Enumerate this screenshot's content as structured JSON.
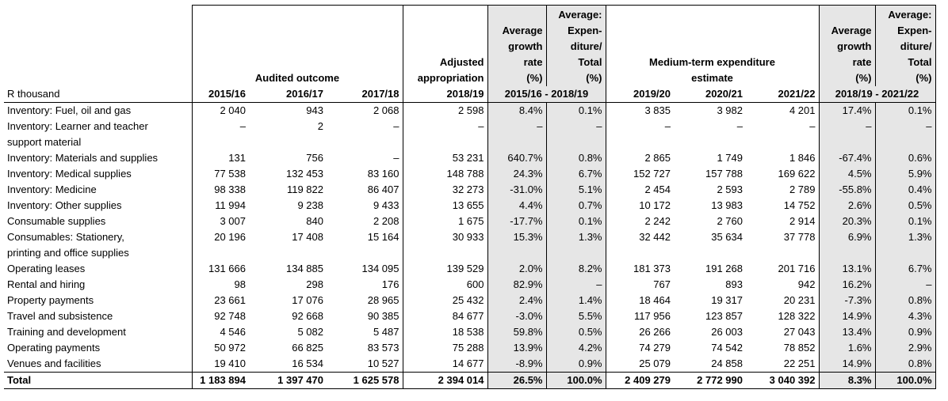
{
  "table": {
    "header": {
      "audited": "Audited outcome",
      "adjusted": [
        "Adjusted",
        "appropriation"
      ],
      "growth": [
        "Average",
        "growth",
        "rate",
        "(%)"
      ],
      "share": [
        "Average:",
        "Expen-",
        "diture/",
        "Total",
        "(%)"
      ],
      "mtef": [
        "Medium-term expenditure",
        "estimate"
      ],
      "unit": "R thousand",
      "years1": [
        "2015/16",
        "2016/17",
        "2017/18",
        "2018/19"
      ],
      "range1": "2015/16 - 2018/19",
      "years2": [
        "2019/20",
        "2020/21",
        "2021/22"
      ],
      "range2": "2018/19 - 2021/22"
    },
    "rows": [
      {
        "label": "Inventory: Fuel, oil and gas",
        "cells": [
          "2 040",
          "943",
          "2 068",
          "2 598",
          "8.4%",
          "0.1%",
          "3 835",
          "3 982",
          "4 201",
          "17.4%",
          "0.1%"
        ]
      },
      {
        "label": [
          "Inventory: Learner and teacher",
          "support material"
        ],
        "cells": [
          "–",
          "2",
          "–",
          "–",
          "–",
          "–",
          "–",
          "–",
          "–",
          "–",
          "–"
        ]
      },
      {
        "label": "Inventory: Materials and supplies",
        "cells": [
          "131",
          "756",
          "–",
          "53 231",
          "640.7%",
          "0.8%",
          "2 865",
          "1 749",
          "1 846",
          "-67.4%",
          "0.6%"
        ]
      },
      {
        "label": "Inventory: Medical supplies",
        "cells": [
          "77 538",
          "132 453",
          "83 160",
          "148 788",
          "24.3%",
          "6.7%",
          "152 727",
          "157 788",
          "169 622",
          "4.5%",
          "5.9%"
        ]
      },
      {
        "label": "Inventory: Medicine",
        "cells": [
          "98 338",
          "119 822",
          "86 407",
          "32 273",
          "-31.0%",
          "5.1%",
          "2 454",
          "2 593",
          "2 789",
          "-55.8%",
          "0.4%"
        ]
      },
      {
        "label": "Inventory: Other supplies",
        "cells": [
          "11 994",
          "9 238",
          "9 433",
          "13 655",
          "4.4%",
          "0.7%",
          "10 172",
          "13 983",
          "14 752",
          "2.6%",
          "0.5%"
        ]
      },
      {
        "label": "Consumable supplies",
        "cells": [
          "3 007",
          "840",
          "2 208",
          "1 675",
          "-17.7%",
          "0.1%",
          "2 242",
          "2 760",
          "2 914",
          "20.3%",
          "0.1%"
        ]
      },
      {
        "label": [
          "Consumables: Stationery,",
          "printing and office supplies"
        ],
        "cells": [
          "20 196",
          "17 408",
          "15 164",
          "30 933",
          "15.3%",
          "1.3%",
          "32 442",
          "35 634",
          "37 778",
          "6.9%",
          "1.3%"
        ]
      },
      {
        "label": "Operating leases",
        "cells": [
          "131 666",
          "134 885",
          "134 095",
          "139 529",
          "2.0%",
          "8.2%",
          "181 373",
          "191 268",
          "201 716",
          "13.1%",
          "6.7%"
        ]
      },
      {
        "label": "Rental and hiring",
        "cells": [
          "98",
          "298",
          "176",
          "600",
          "82.9%",
          "–",
          "767",
          "893",
          "942",
          "16.2%",
          "–"
        ]
      },
      {
        "label": "Property payments",
        "cells": [
          "23 661",
          "17 076",
          "28 965",
          "25 432",
          "2.4%",
          "1.4%",
          "18 464",
          "19 317",
          "20 231",
          "-7.3%",
          "0.8%"
        ]
      },
      {
        "label": "Travel and subsistence",
        "cells": [
          "92 748",
          "92 668",
          "90 385",
          "84 677",
          "-3.0%",
          "5.5%",
          "117 956",
          "123 857",
          "128 322",
          "14.9%",
          "4.3%"
        ]
      },
      {
        "label": "Training and development",
        "cells": [
          "4 546",
          "5 082",
          "5 487",
          "18 538",
          "59.8%",
          "0.5%",
          "26 266",
          "26 003",
          "27 043",
          "13.4%",
          "0.9%"
        ]
      },
      {
        "label": "Operating payments",
        "cells": [
          "50 972",
          "66 825",
          "83 573",
          "75 288",
          "13.9%",
          "4.2%",
          "74 279",
          "74 542",
          "78 852",
          "1.6%",
          "2.9%"
        ]
      },
      {
        "label": "Venues and facilities",
        "cells": [
          "19 410",
          "16 534",
          "10 527",
          "14 677",
          "-8.9%",
          "0.9%",
          "25 079",
          "24 858",
          "22 251",
          "14.9%",
          "0.8%"
        ]
      }
    ],
    "total": {
      "label": "Total",
      "cells": [
        "1 183 894",
        "1 397 470",
        "1 625 578",
        "2 394 014",
        "26.5%",
        "100.0%",
        "2 409 279",
        "2 772 990",
        "3 040 392",
        "8.3%",
        "100.0%"
      ]
    }
  }
}
